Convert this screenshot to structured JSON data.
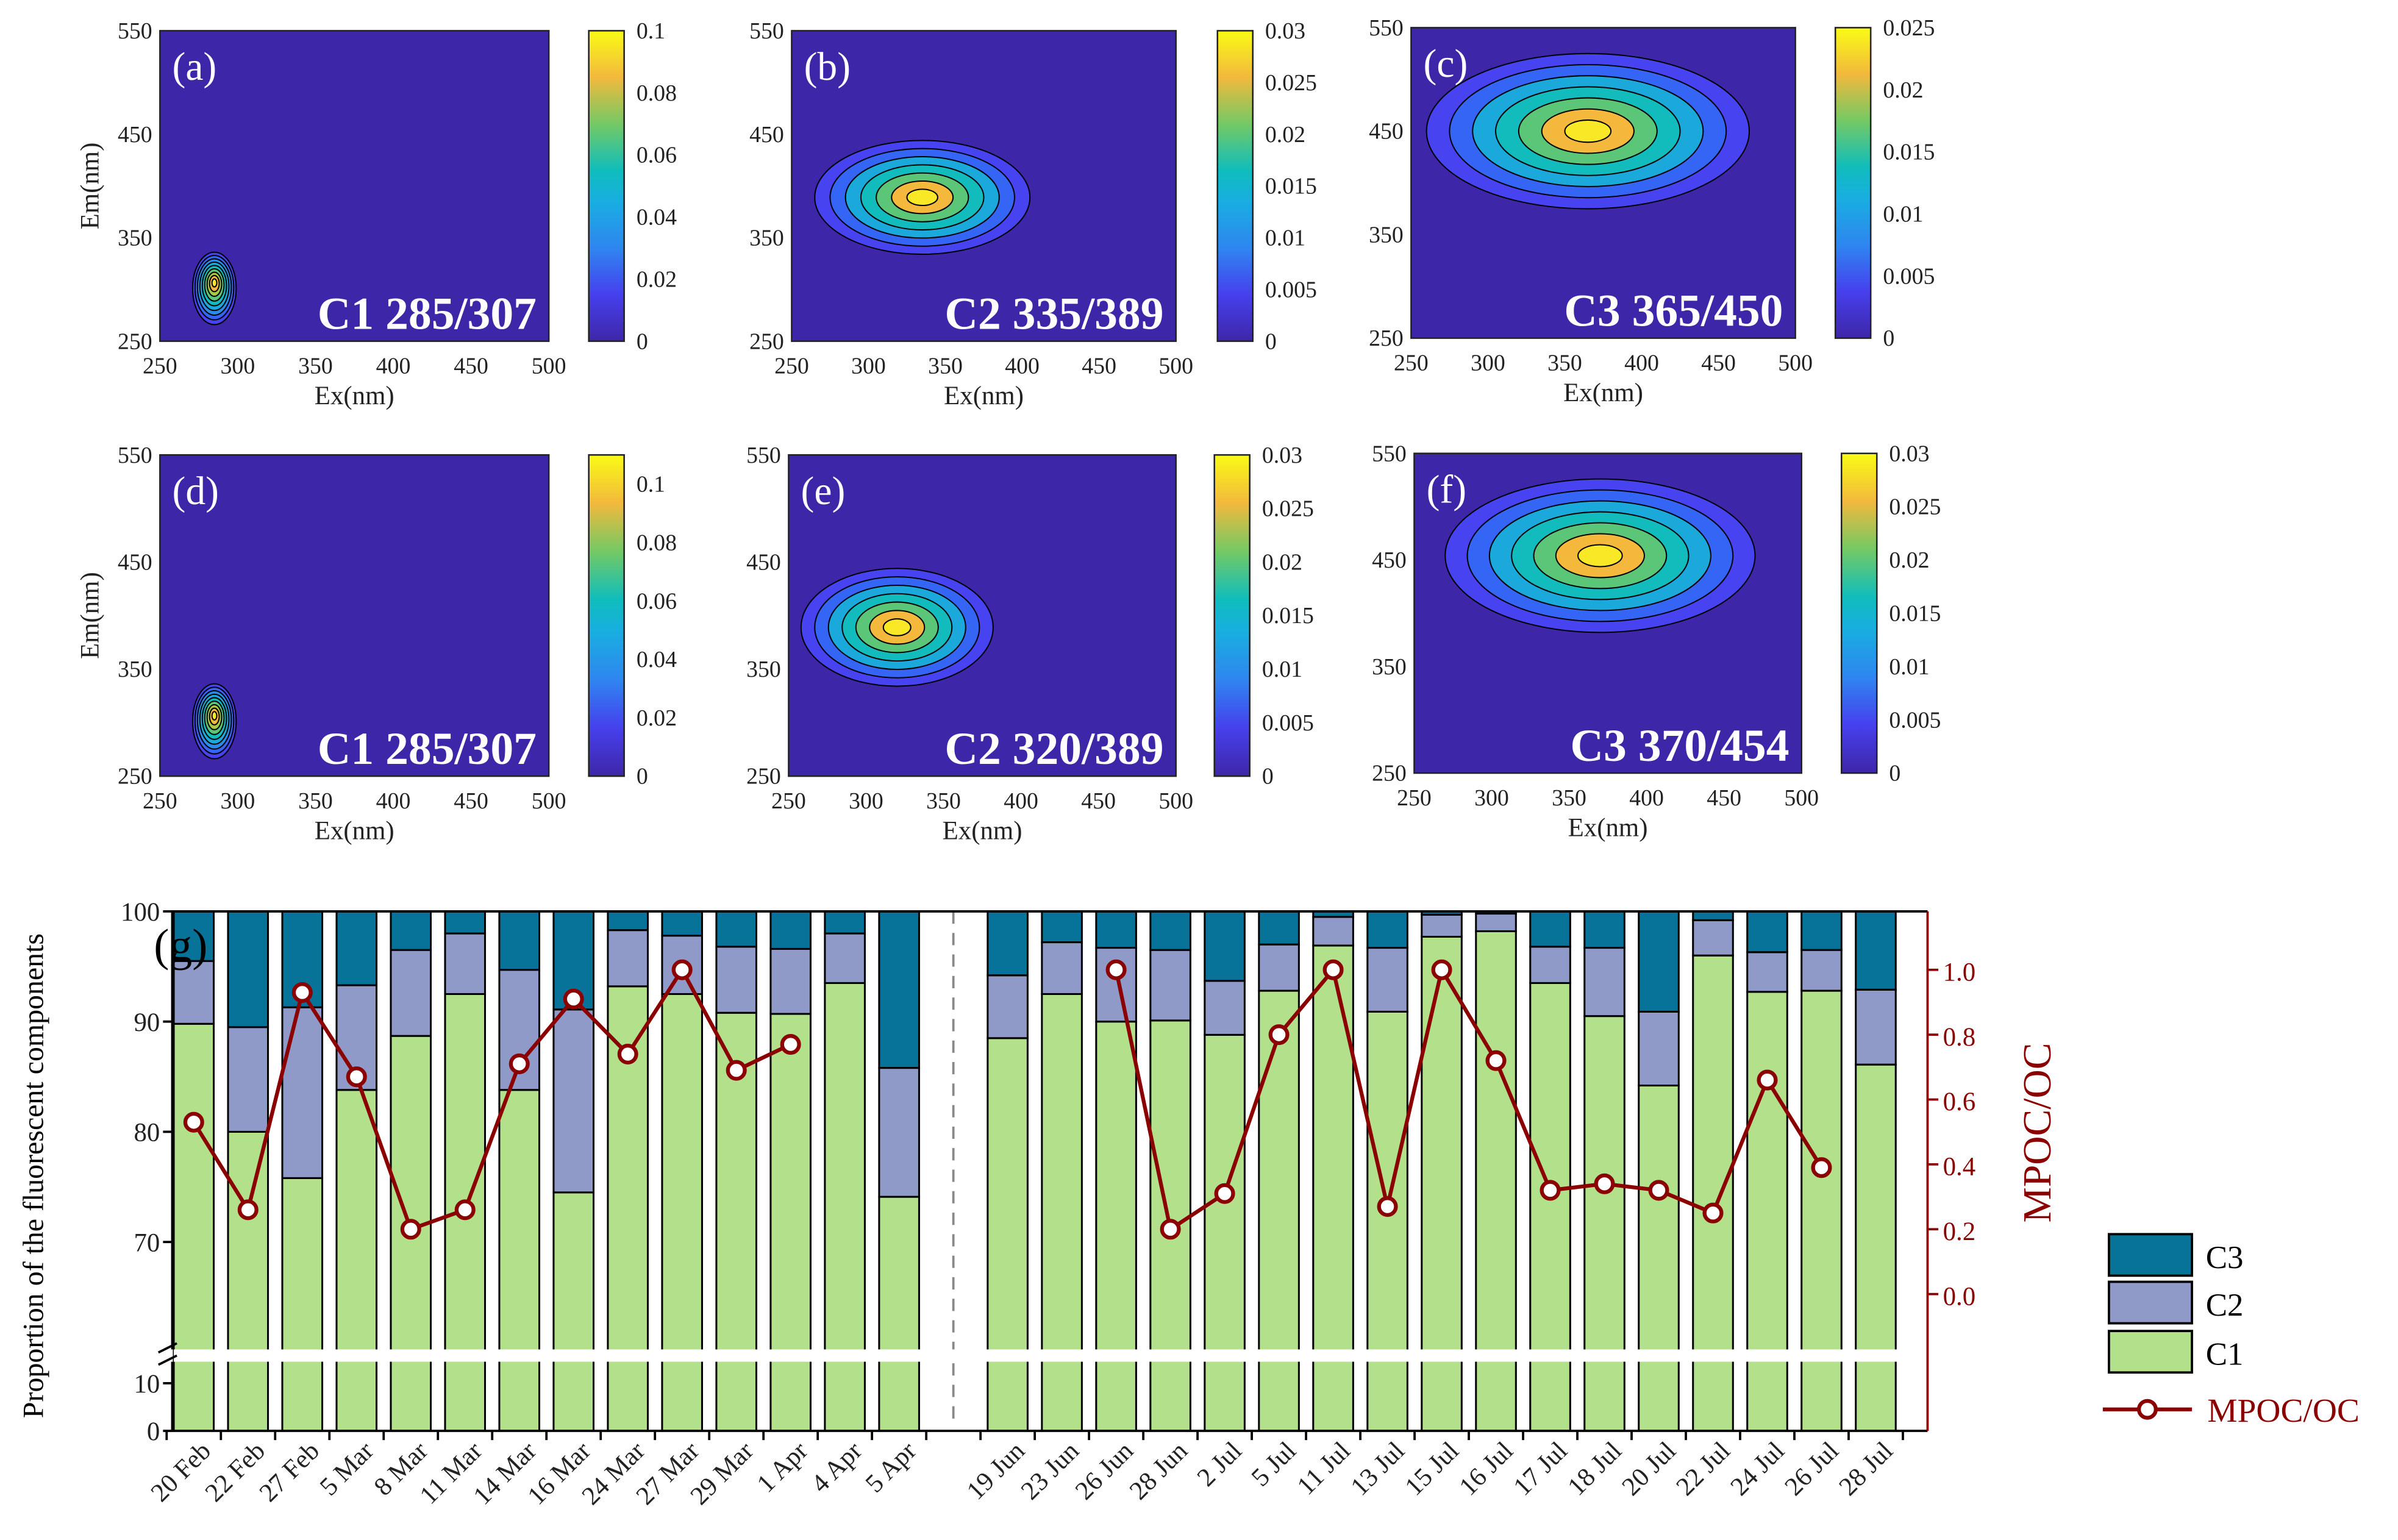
{
  "panels": [
    {
      "tag": "(a)",
      "label": "C1 285/307",
      "ex": 285,
      "em": 307,
      "cbar_max": 0.1,
      "cbar_ticks": [
        "0",
        "0.02",
        "0.04",
        "0.06",
        "0.08",
        "0.1"
      ],
      "cbar_values": [
        0,
        0.02,
        0.04,
        0.06,
        0.08,
        0.1
      ],
      "show_ylabel": true
    },
    {
      "tag": "(b)",
      "label": "C2 335/389",
      "ex": 335,
      "em": 389,
      "cbar_max": 0.03,
      "cbar_ticks": [
        "0",
        "0.005",
        "0.01",
        "0.015",
        "0.02",
        "0.025",
        "0.03"
      ],
      "cbar_values": [
        0,
        0.005,
        0.01,
        0.015,
        0.02,
        0.025,
        0.03
      ],
      "show_ylabel": false
    },
    {
      "tag": "(c)",
      "label": "C3 365/450",
      "ex": 365,
      "em": 450,
      "cbar_max": 0.025,
      "cbar_ticks": [
        "0",
        "0.005",
        "0.01",
        "0.015",
        "0.02",
        "0.025"
      ],
      "cbar_values": [
        0,
        0.005,
        0.01,
        0.015,
        0.02,
        0.025
      ],
      "show_ylabel": false
    },
    {
      "tag": "(d)",
      "label": "C1 285/307",
      "ex": 285,
      "em": 307,
      "cbar_max": 0.11,
      "cbar_ticks": [
        "0",
        "0.02",
        "0.04",
        "0.06",
        "0.08",
        "0.1"
      ],
      "cbar_values": [
        0,
        0.02,
        0.04,
        0.06,
        0.08,
        0.1
      ],
      "show_ylabel": true
    },
    {
      "tag": "(e)",
      "label": "C2 320/389",
      "ex": 320,
      "em": 389,
      "cbar_max": 0.03,
      "cbar_ticks": [
        "0",
        "0.005",
        "0.01",
        "0.015",
        "0.02",
        "0.025",
        "0.03"
      ],
      "cbar_values": [
        0,
        0.005,
        0.01,
        0.015,
        0.02,
        0.025,
        0.03
      ],
      "show_ylabel": false
    },
    {
      "tag": "(f)",
      "label": "C3 370/454",
      "ex": 370,
      "em": 454,
      "cbar_max": 0.03,
      "cbar_ticks": [
        "0",
        "0.005",
        "0.01",
        "0.015",
        "0.02",
        "0.025",
        "0.03"
      ],
      "cbar_values": [
        0,
        0.005,
        0.01,
        0.015,
        0.02,
        0.025,
        0.03
      ],
      "show_ylabel": false
    }
  ],
  "eem_axes": {
    "xlabel": "Ex(nm)",
    "ylabel": "Em(nm)",
    "xticks": [
      "250",
      "300",
      "350",
      "400",
      "450",
      "500"
    ],
    "yticks": [
      "250",
      "350",
      "450",
      "550"
    ]
  },
  "chart_data": {
    "type": "bar",
    "stacked": true,
    "tag": "(g)",
    "ylabel": "Proportion of the fluorescent components",
    "y2label": "MPOC/OC",
    "ylim_upper": [
      60,
      100
    ],
    "ylim_lower": [
      0,
      10
    ],
    "yticks": [
      "0",
      "10",
      "70",
      "80",
      "90",
      "100"
    ],
    "y2lim": [
      -0.2,
      1.2
    ],
    "y2ticks": [
      "0.0",
      "0.2",
      "0.4",
      "0.6",
      "0.8",
      "1.0"
    ],
    "categories": [
      "20 Feb",
      "22 Feb",
      "27 Feb",
      "5 Mar",
      "8 Mar",
      "11 Mar",
      "14 Mar",
      "16 Mar",
      "24 Mar",
      "27 Mar",
      "29 Mar",
      "1 Apr",
      "4 Apr",
      "5 Apr",
      "",
      "19 Jun",
      "23 Jun",
      "26 Jun",
      "28 Jun",
      "2 Jul",
      "5 Jul",
      "11 Jul",
      "13 Jul",
      "15 Jul",
      "16 Jul",
      "17 Jul",
      "18 Jul",
      "20 Jul",
      "22 Jul",
      "24 Jul",
      "26 Jul",
      "28 Jul"
    ],
    "series": [
      {
        "name": "C1",
        "color": "#b3e08a",
        "values": [
          89.8,
          80.0,
          75.8,
          83.8,
          88.7,
          92.5,
          83.8,
          74.5,
          93.2,
          92.5,
          90.8,
          90.7,
          93.5,
          74.1,
          null,
          88.5,
          92.5,
          90.0,
          90.1,
          88.8,
          92.8,
          96.9,
          90.9,
          97.7,
          98.2,
          93.5,
          90.5,
          84.2,
          96.0,
          92.7,
          92.8,
          86.1
        ]
      },
      {
        "name": "C2",
        "color": "#8f9ac8",
        "values": [
          5.7,
          9.5,
          15.5,
          9.5,
          7.8,
          5.5,
          10.9,
          16.6,
          5.1,
          5.3,
          6.0,
          5.9,
          4.5,
          11.7,
          null,
          5.7,
          4.7,
          6.7,
          6.4,
          4.9,
          4.2,
          2.6,
          5.8,
          2.0,
          1.6,
          3.3,
          6.2,
          6.7,
          3.2,
          3.6,
          3.7,
          6.8
        ]
      },
      {
        "name": "C3",
        "color": "#087398",
        "values": [
          4.5,
          10.5,
          8.7,
          6.7,
          3.5,
          2.0,
          5.3,
          8.9,
          1.7,
          2.2,
          3.2,
          3.4,
          2.0,
          14.2,
          null,
          5.8,
          2.8,
          3.3,
          3.5,
          6.3,
          3.0,
          0.5,
          3.3,
          0.3,
          0.2,
          3.2,
          3.3,
          9.1,
          0.8,
          3.7,
          3.5,
          7.1
        ]
      },
      {
        "name": "MPOC/OC",
        "color": "#8b0000",
        "type": "line",
        "axis": "right",
        "values": [
          0.53,
          0.26,
          0.93,
          0.67,
          0.2,
          0.26,
          0.71,
          0.91,
          0.74,
          1.0,
          0.69,
          0.77,
          null,
          null,
          null,
          null,
          null,
          1.0,
          0.2,
          0.31,
          0.8,
          1.0,
          0.27,
          1.0,
          0.72,
          0.32,
          0.34,
          0.32,
          0.25,
          0.66,
          0.39,
          null
        ]
      }
    ],
    "legend": [
      "C3",
      "C2",
      "C1",
      "MPOC/OC"
    ],
    "legend_position": "right"
  }
}
